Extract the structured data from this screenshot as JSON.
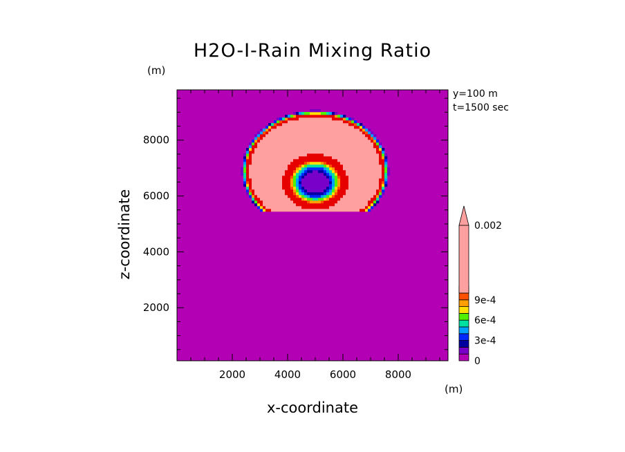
{
  "chart_data": {
    "type": "heatmap",
    "title": "H2O-I-Rain Mixing Ratio",
    "xlabel": "x-coordinate",
    "ylabel": "z-coordinate",
    "x_unit": "(m)",
    "z_unit": "(m)",
    "xlim": [
      0,
      9800
    ],
    "ylim": [
      100,
      9800
    ],
    "x_ticks": [
      2000,
      4000,
      6000,
      8000
    ],
    "y_ticks": [
      2000,
      4000,
      6000,
      8000
    ],
    "annotations": [
      "y=100 m",
      "t=1500 sec"
    ],
    "colorbar": {
      "levels": [
        0,
        0.0001,
        0.0002,
        0.0003,
        0.0004,
        0.0005,
        0.0006,
        0.0007,
        0.0008,
        0.0009,
        0.001,
        0.002
      ],
      "labeled_ticks": [
        {
          "value": 0,
          "label": "0"
        },
        {
          "value": 0.0003,
          "label": "3e-4"
        },
        {
          "value": 0.0006,
          "label": "6e-4"
        },
        {
          "value": 0.0009,
          "label": "9e-4"
        },
        {
          "value": 0.002,
          "label": "0.002"
        }
      ],
      "colors": [
        "#b400b4",
        "#7800c8",
        "#0000a0",
        "#0028ff",
        "#00a0ff",
        "#00e0a0",
        "#50f000",
        "#ffe000",
        "#ffa000",
        "#ff5000",
        "#e60000",
        "#ffa0a0"
      ],
      "extend": "max"
    },
    "field": {
      "feature": "mushroom-shaped rain shaft",
      "center_x": 5000,
      "center_z": 6900,
      "horizontal_radius": 2700,
      "vertical_radius": 2200,
      "inner_cavity_radius_x": 1300,
      "inner_cavity_radius_z": 1100,
      "lower_limit_z": 5400,
      "max_value": 0.0025
    }
  }
}
